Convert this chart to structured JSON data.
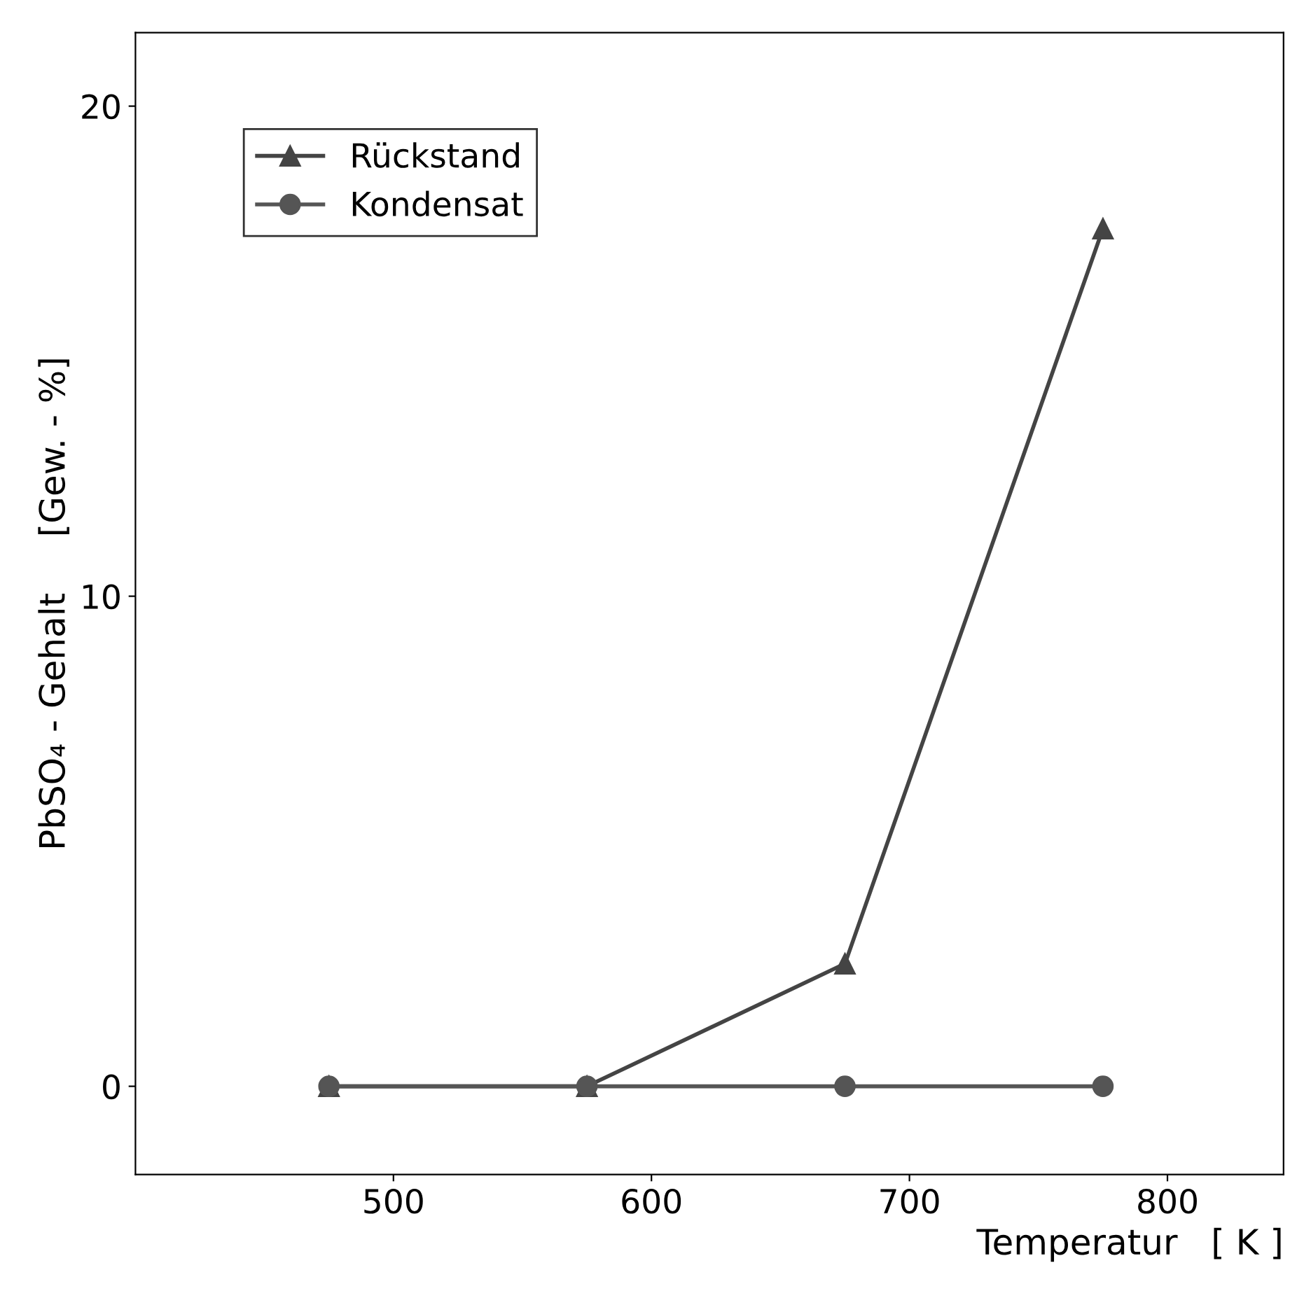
{
  "chart_data": {
    "type": "line",
    "xlabel": "Temperatur   [ K ]",
    "ylabel": "PbSO₄ - Gehalt     [Gew. - %]",
    "x": [
      475,
      575,
      675,
      775
    ],
    "series": [
      {
        "name": "Rückstand",
        "color": "#444444",
        "values": [
          0,
          0,
          2.5,
          17.5
        ],
        "marker": "triangle"
      },
      {
        "name": "Kondensat",
        "color": "#555555",
        "values": [
          0,
          0,
          0,
          0
        ],
        "marker": "circle"
      }
    ],
    "xlim": [
      400,
      845
    ],
    "ylim": [
      -1.8,
      21.5
    ],
    "xticks": [
      500,
      600,
      700,
      800
    ],
    "yticks": [
      0,
      10,
      20
    ],
    "grid": false,
    "legend": "top left",
    "line_style": "solid"
  }
}
